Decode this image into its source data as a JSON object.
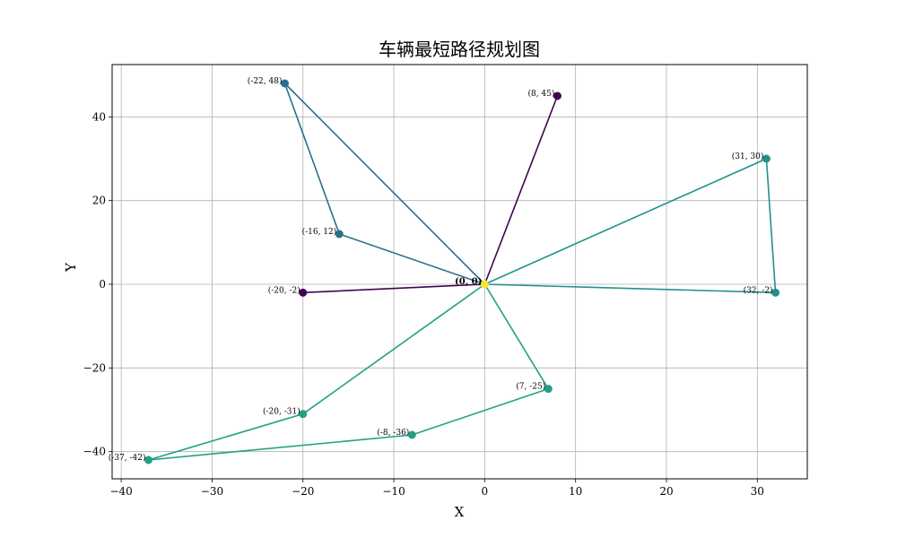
{
  "chart_data": {
    "type": "line",
    "title": "车辆最短路径规划图",
    "xlabel": "X",
    "ylabel": "Y",
    "xlim": [
      -41,
      35.5
    ],
    "ylim": [
      -46.5,
      52.5
    ],
    "xticks": [
      -40,
      -30,
      -20,
      -10,
      0,
      10,
      20,
      30
    ],
    "yticks": [
      -40,
      -20,
      0,
      20,
      40
    ],
    "grid": true,
    "depot": {
      "x": 0,
      "y": 0,
      "label": "(0, 0)",
      "color": "#fde725"
    },
    "series": [
      {
        "color": "#440154",
        "points": [
          [
            0,
            0
          ],
          [
            8,
            45
          ],
          [
            0,
            0
          ],
          [
            -20,
            -2
          ],
          [
            0,
            0
          ]
        ]
      },
      {
        "color": "#2a6f8e",
        "points": [
          [
            0,
            0
          ],
          [
            -22,
            48
          ],
          [
            -16,
            12
          ],
          [
            0,
            0
          ]
        ]
      },
      {
        "color": "#21918c",
        "points": [
          [
            0,
            0
          ],
          [
            31,
            30
          ],
          [
            32,
            -2
          ],
          [
            0,
            0
          ]
        ]
      },
      {
        "color": "#22a086",
        "points": [
          [
            0,
            0
          ],
          [
            -20,
            -31
          ],
          [
            -37,
            -42
          ],
          [
            -8,
            -36
          ],
          [
            7,
            -25
          ],
          [
            0,
            0
          ]
        ]
      }
    ],
    "point_labels": [
      {
        "x": 8,
        "y": 45,
        "text": "(8, 45)"
      },
      {
        "x": -20,
        "y": -2,
        "text": "(-20, -2)"
      },
      {
        "x": -22,
        "y": 48,
        "text": "(-22, 48)"
      },
      {
        "x": -16,
        "y": 12,
        "text": "(-16, 12)"
      },
      {
        "x": 31,
        "y": 30,
        "text": "(31, 30)"
      },
      {
        "x": 32,
        "y": -2,
        "text": "(32, -2)"
      },
      {
        "x": -20,
        "y": -31,
        "text": "(-20, -31)"
      },
      {
        "x": -37,
        "y": -42,
        "text": "(-37, -42)"
      },
      {
        "x": -8,
        "y": -36,
        "text": "(-8, -36)"
      },
      {
        "x": 7,
        "y": -25,
        "text": "(7, -25)"
      }
    ]
  }
}
